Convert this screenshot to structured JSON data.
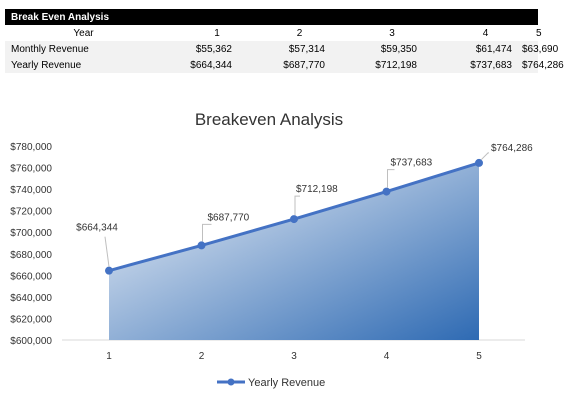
{
  "sheet": {
    "title": "Break Even Analysis",
    "header": {
      "label": "Year",
      "cols": [
        "1",
        "2",
        "3",
        "4",
        "5"
      ]
    },
    "rows": [
      {
        "label": "Monthly Revenue",
        "cells": [
          "$55,362",
          "$57,314",
          "$59,350",
          "$61,474",
          "$63,690"
        ]
      },
      {
        "label": "Yearly Revenue",
        "cells": [
          "$664,344",
          "$687,770",
          "$712,198",
          "$737,683",
          "$764,286"
        ]
      }
    ]
  },
  "chart_data": {
    "type": "area",
    "title": "Breakeven Analysis",
    "categories": [
      "1",
      "2",
      "3",
      "4",
      "5"
    ],
    "series": [
      {
        "name": "Yearly Revenue",
        "values": [
          664344,
          687770,
          712198,
          737683,
          764286
        ],
        "labels": [
          "$664,344",
          "$687,770",
          "$712,198",
          "$737,683",
          "$764,286"
        ]
      }
    ],
    "ylim": [
      600000,
      780000
    ],
    "ystep": 20000,
    "y_ticks": [
      "$600,000",
      "$620,000",
      "$640,000",
      "$660,000",
      "$680,000",
      "$700,000",
      "$720,000",
      "$740,000",
      "$760,000",
      "$780,000"
    ],
    "xlabel": "",
    "ylabel": "",
    "grid": false,
    "legend": "bottom",
    "colors": {
      "line": "#4472c4",
      "fill_light": "#f4f6fa",
      "fill_dark": "#2e6ab3",
      "axis": "#d9d9d9"
    }
  }
}
